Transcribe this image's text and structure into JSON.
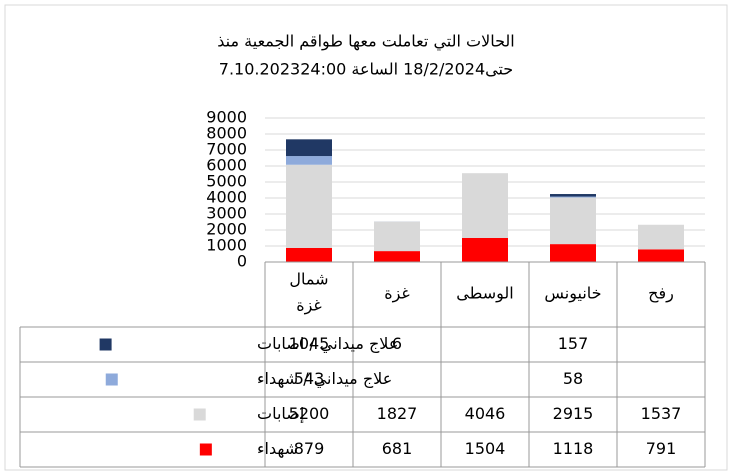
{
  "chart_data": {
    "type": "bar",
    "stacked": true,
    "title": [
      "الحالات التي تعاملت معها طواقم الجمعية منذ",
      "7.10.2023حتى18/2/2024  الساعة 24:00"
    ],
    "categories": [
      "شمال غزة",
      "غزة",
      "الوسطى",
      "خانيونس",
      "رفح"
    ],
    "series": [
      {
        "name": "شهداء",
        "color": "#ff0000",
        "values": [
          879,
          681,
          1504,
          1118,
          791
        ]
      },
      {
        "name": "إصابات",
        "color": "#d9d9d9",
        "values": [
          5200,
          1827,
          4046,
          2915,
          1537
        ]
      },
      {
        "name": "علاج ميداني / شهداء",
        "color": "#8eaadb",
        "values": [
          543,
          null,
          null,
          58,
          null
        ]
      },
      {
        "name": "علاج ميداني / اصابات",
        "color": "#203864",
        "values": [
          1045,
          6,
          null,
          157,
          null
        ]
      }
    ],
    "ylim": [
      0,
      9000
    ],
    "yticks": [
      0,
      1000,
      2000,
      3000,
      4000,
      5000,
      6000,
      7000,
      8000,
      9000
    ],
    "grid": true
  }
}
